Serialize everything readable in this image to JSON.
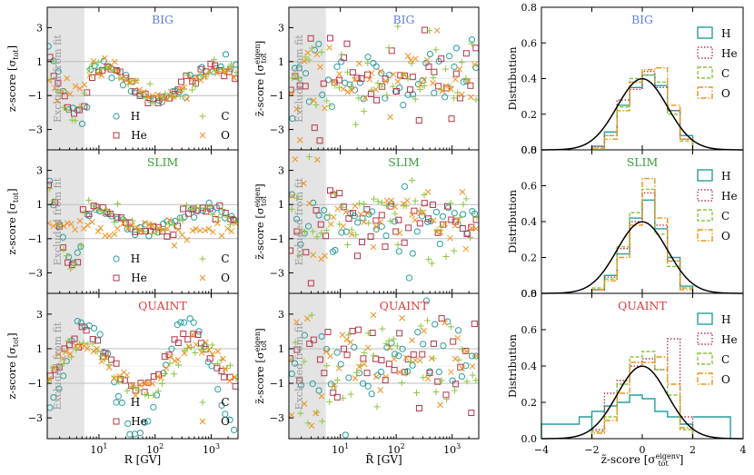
{
  "figure": {
    "rows": [
      {
        "model": "BIG",
        "color": "#5b7fd9"
      },
      {
        "model": "SLIM",
        "color": "#3a9e3a"
      },
      {
        "model": "QUAINT",
        "color": "#e03a3a"
      }
    ],
    "excluded_label": "Excluded from fit",
    "col1_ylabel": "z-score [σtot]",
    "col2_ylabel": "z̃-score [σtot eigen]",
    "col3_ylabel": "Distribution",
    "col1_xlabel": "R [GV]",
    "col2_xlabel": "R̃ [GV]",
    "col3_xlabel": "z̃-score [σtot eigenv]"
  },
  "chart_data": [
    {
      "type": "scatter",
      "panel": "z-score vs rigidity",
      "xlabel": "R [GV]",
      "ylabel": "z-score [σtot]",
      "xscale": "log",
      "xlim": [
        1.2,
        3000
      ],
      "ylim": [
        -4.2,
        4.2
      ],
      "x_ticks": [
        "10^1",
        "10^2",
        "10^3"
      ],
      "y_ticks": [
        "-3",
        "-1",
        "1",
        "3"
      ],
      "excluded_region": [
        1.2,
        5.5
      ],
      "series": [
        {
          "name": "H",
          "marker": "circle",
          "color": "#2a9d9d"
        },
        {
          "name": "He",
          "marker": "square",
          "color": "#b5364a"
        },
        {
          "name": "C",
          "marker": "plus",
          "color": "#8cc63f"
        },
        {
          "name": "O",
          "marker": "cross",
          "color": "#f0901e"
        }
      ],
      "models": [
        "BIG",
        "SLIM",
        "QUAINT"
      ]
    },
    {
      "type": "scatter",
      "panel": "decorrelated z-score vs rotated rigidity",
      "xlabel": "R̃ [GV]",
      "ylabel": "z̃-score [σtot eigen]",
      "xscale": "log",
      "xlim": [
        1.2,
        3000
      ],
      "ylim": [
        -4.2,
        4.2
      ],
      "x_ticks": [
        "10^1",
        "10^2",
        "10^3"
      ],
      "y_ticks": [
        "-3",
        "-1",
        "1",
        "3"
      ],
      "excluded_region": [
        1.2,
        5.5
      ],
      "series": [
        {
          "name": "H",
          "marker": "circle",
          "color": "#2a9d9d"
        },
        {
          "name": "He",
          "marker": "square",
          "color": "#b5364a"
        },
        {
          "name": "C",
          "marker": "plus",
          "color": "#8cc63f"
        },
        {
          "name": "O",
          "marker": "cross",
          "color": "#f0901e"
        }
      ],
      "models": [
        "BIG",
        "SLIM",
        "QUAINT"
      ]
    },
    {
      "type": "histogram",
      "panel": "distribution of decorrelated z-scores",
      "xlabel": "z̃-score [σtot eigenv]",
      "ylabel": "Distribution",
      "xlim": [
        -4,
        4
      ],
      "ylim": [
        0,
        0.8
      ],
      "x_ticks": [
        "-4",
        "-2",
        "0",
        "2",
        "4"
      ],
      "y_ticks": [
        "0.0",
        "0.2",
        "0.4",
        "0.6",
        "0.8"
      ],
      "reference_curve": "standard normal N(0,1)",
      "legend": [
        "H",
        "He",
        "C",
        "O"
      ],
      "series_colors": {
        "H": "#2a9d9d",
        "He": "#b5364a",
        "C": "#8cc63f",
        "O": "#f0901e"
      },
      "bin_edges": [
        -2.0,
        -1.5,
        -1.0,
        -0.5,
        0.0,
        0.5,
        1.0,
        1.5,
        2.0
      ],
      "models": [
        {
          "model": "BIG",
          "H": [
            0.02,
            0.1,
            0.25,
            0.35,
            0.42,
            0.36,
            0.22,
            0.08
          ],
          "He": [
            0.02,
            0.08,
            0.28,
            0.34,
            0.44,
            0.35,
            0.22,
            0.06
          ],
          "C": [
            0.01,
            0.08,
            0.24,
            0.4,
            0.42,
            0.38,
            0.2,
            0.05
          ],
          "O": [
            0.01,
            0.06,
            0.22,
            0.38,
            0.45,
            0.46,
            0.25,
            0.06
          ]
        },
        {
          "model": "SLIM",
          "H": [
            0.02,
            0.1,
            0.22,
            0.42,
            0.52,
            0.36,
            0.2,
            0.04
          ],
          "He": [
            0.02,
            0.09,
            0.25,
            0.4,
            0.56,
            0.38,
            0.18,
            0.03
          ],
          "C": [
            0.03,
            0.08,
            0.26,
            0.45,
            0.58,
            0.33,
            0.15,
            0.03
          ],
          "O": [
            0.02,
            0.07,
            0.2,
            0.38,
            0.64,
            0.42,
            0.18,
            0.02
          ]
        },
        {
          "model": "QUAINT",
          "H": [
            0.15,
            0.18,
            0.2,
            0.24,
            0.22,
            0.15,
            0.12,
            0.08
          ],
          "He": [
            0.05,
            0.25,
            0.32,
            0.4,
            0.44,
            0.38,
            0.55,
            0.12
          ],
          "C": [
            0.04,
            0.12,
            0.3,
            0.45,
            0.48,
            0.38,
            0.24,
            0.05
          ],
          "O": [
            0.03,
            0.1,
            0.25,
            0.42,
            0.42,
            0.45,
            0.3,
            0.06
          ]
        }
      ]
    }
  ]
}
